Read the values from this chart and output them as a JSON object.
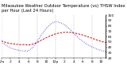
{
  "title": "Milwaukee Weather Outdoor Temperature (vs) THSW Index per Hour (Last 24 Hours)",
  "hours": [
    0,
    1,
    2,
    3,
    4,
    5,
    6,
    7,
    8,
    9,
    10,
    11,
    12,
    13,
    14,
    15,
    16,
    17,
    18,
    19,
    20,
    21,
    22,
    23
  ],
  "temp": [
    52,
    49,
    47,
    46,
    45,
    45,
    44,
    46,
    49,
    54,
    58,
    62,
    65,
    67,
    68,
    68,
    67,
    65,
    63,
    60,
    57,
    54,
    51,
    49
  ],
  "thsw": [
    50,
    44,
    39,
    36,
    34,
    33,
    33,
    40,
    52,
    65,
    76,
    84,
    88,
    86,
    82,
    75,
    66,
    58,
    51,
    45,
    41,
    37,
    34,
    32
  ],
  "temp_color": "#cc0000",
  "thsw_color": "#0000cc",
  "ylim": [
    20,
    100
  ],
  "yticks": [
    20,
    30,
    40,
    50,
    60,
    70,
    80,
    90,
    100
  ],
  "bg_color": "#ffffff",
  "grid_color": "#888888",
  "title_fontsize": 3.8,
  "tick_fontsize": 3.2,
  "grid_positions": [
    0,
    4,
    8,
    12,
    16,
    20,
    24
  ]
}
